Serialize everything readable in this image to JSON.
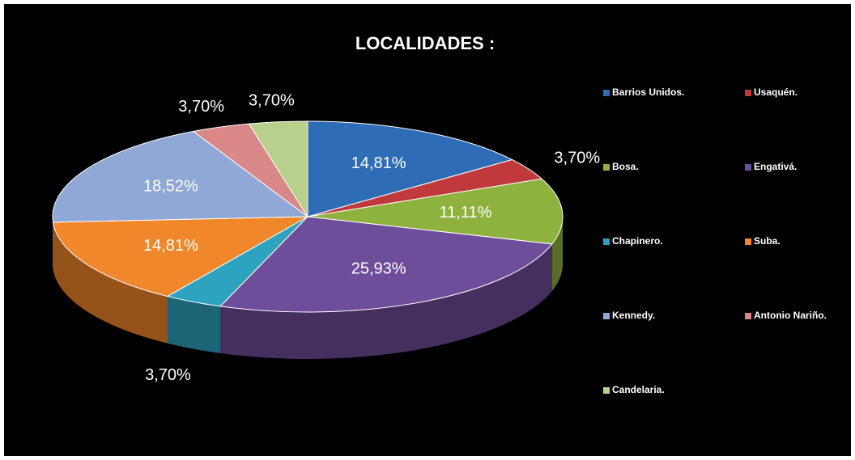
{
  "chart_data": {
    "type": "pie",
    "title": "LOCALIDADES :",
    "categories": [
      "Barrios Unidos.",
      "Usaquén.",
      "Bosa.",
      "Engativá.",
      "Chapinero.",
      "Suba.",
      "Kennedy.",
      "Antonio Nariño.",
      "Candelaria."
    ],
    "values": [
      14.81,
      3.7,
      11.11,
      25.93,
      3.7,
      14.81,
      18.52,
      3.7,
      3.7
    ],
    "value_labels": [
      "14,81%",
      "3,70%",
      "11,11%",
      "25,93%",
      "3,70%",
      "14,81%",
      "18,52%",
      "3,70%",
      "3,70%"
    ],
    "colors": [
      "#2e6db5",
      "#c0393b",
      "#8db23e",
      "#6e4d9a",
      "#2ea3bf",
      "#f0872a",
      "#8fa8d6",
      "#d98787",
      "#b9cf8c"
    ]
  }
}
